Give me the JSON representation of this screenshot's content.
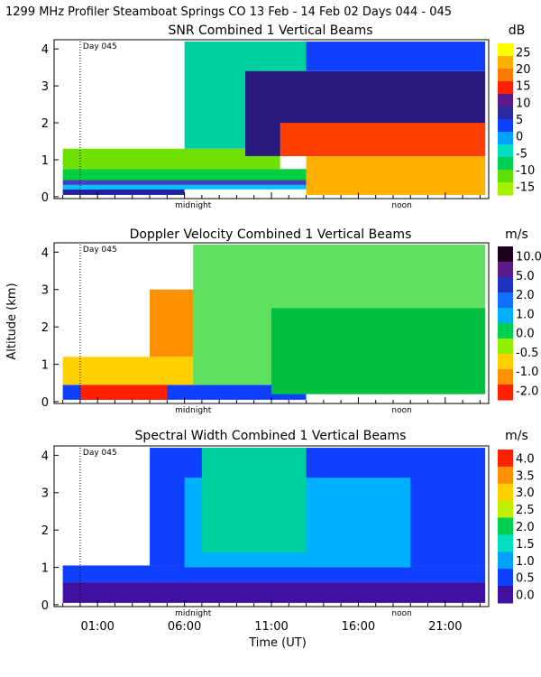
{
  "header": {
    "title": "1299 MHz Profiler  Steamboat Springs CO  13 Feb - 14 Feb 02 Days 044 - 045"
  },
  "axes": {
    "xlabel": "Time (UT)",
    "ylabel": "Altitude (km)",
    "yticks": [
      "0",
      "1",
      "2",
      "3",
      "4"
    ],
    "xticks": [
      "01:00",
      "06:00",
      "11:00",
      "16:00",
      "21:00"
    ],
    "xtick_hours": [
      1,
      6,
      11,
      16,
      21
    ],
    "xrange_hours": [
      -1.5,
      23.5
    ],
    "yrange_km": [
      -0.05,
      4.25
    ]
  },
  "markers": {
    "day_label": "Day 045",
    "day_hour": 0,
    "midnight_label": "midnight",
    "midnight_hour": 6.5,
    "noon_label": "noon",
    "noon_hour": 18.5
  },
  "chart_data": [
    {
      "type": "heatmap",
      "title": "SNR Combined 1 Vertical Beams",
      "unit": "dB",
      "colorbar_ticks": [
        "25",
        "20",
        "15",
        "10",
        "5",
        "0",
        "-5",
        "-10",
        "-15"
      ],
      "colorbar_colors": [
        "#ffff00",
        "#ffb000",
        "#ff7a00",
        "#ff2000",
        "#5a1a8a",
        "#2a2aa0",
        "#1040ff",
        "#00a0ff",
        "#00e0c0",
        "#00d050",
        "#60e000",
        "#a0f000"
      ],
      "regions": [
        {
          "t0": -1.0,
          "t1": 6.0,
          "z0": 0.05,
          "z1": 0.2,
          "color": "#2020a0"
        },
        {
          "t0": -1.0,
          "t1": 13.0,
          "z0": 0.2,
          "z1": 0.32,
          "color": "#00c0ff"
        },
        {
          "t0": -1.0,
          "t1": 13.0,
          "z0": 0.32,
          "z1": 0.45,
          "color": "#4040c0"
        },
        {
          "t0": -1.0,
          "t1": 13.0,
          "z0": 0.45,
          "z1": 0.75,
          "color": "#00d040"
        },
        {
          "t0": -1.0,
          "t1": 11.5,
          "z0": 0.75,
          "z1": 1.3,
          "color": "#70e000"
        },
        {
          "t0": 6.0,
          "t1": 13.0,
          "z0": 1.3,
          "z1": 4.2,
          "color": "#00d0a0"
        },
        {
          "t0": 9.5,
          "t1": 23.3,
          "z0": 1.1,
          "z1": 3.4,
          "color": "#2a1a80"
        },
        {
          "t0": 13.0,
          "t1": 23.3,
          "z0": 0.05,
          "z1": 1.1,
          "color": "#ffb000"
        },
        {
          "t0": 11.5,
          "t1": 23.3,
          "z0": 1.1,
          "z1": 2.0,
          "color": "#ff4000"
        },
        {
          "t0": 13.0,
          "t1": 23.3,
          "z0": 3.4,
          "z1": 4.2,
          "color": "#1040ff"
        }
      ]
    },
    {
      "type": "heatmap",
      "title": "Doppler Velocity Combined 1 Vertical Beams",
      "unit": "m/s",
      "colorbar_ticks": [
        "10.0",
        "5.0",
        "2.0",
        "1.0",
        "0.0",
        "-0.5",
        "-1.0",
        "-2.0"
      ],
      "colorbar_colors": [
        "#200020",
        "#5a1a8a",
        "#2030c0",
        "#1070ff",
        "#00b0ff",
        "#00d050",
        "#90f000",
        "#ffd000",
        "#ff9000",
        "#ff2000"
      ],
      "regions": [
        {
          "t0": -1.0,
          "t1": 13.0,
          "z0": 0.05,
          "z1": 0.45,
          "color": "#1040ff"
        },
        {
          "t0": 0.0,
          "t1": 5.0,
          "z0": 0.05,
          "z1": 0.45,
          "color": "#ff2000"
        },
        {
          "t0": -1.0,
          "t1": 8.0,
          "z0": 0.45,
          "z1": 1.2,
          "color": "#ffd000"
        },
        {
          "t0": 4.0,
          "t1": 8.5,
          "z0": 1.2,
          "z1": 3.0,
          "color": "#ff9000"
        },
        {
          "t0": 6.5,
          "t1": 23.3,
          "z0": 0.45,
          "z1": 4.2,
          "color": "#60e060"
        },
        {
          "t0": 11.0,
          "t1": 23.3,
          "z0": 0.2,
          "z1": 2.5,
          "color": "#00c040"
        }
      ]
    },
    {
      "type": "heatmap",
      "title": "Spectral Width Combined 1 Vertical Beams",
      "unit": "m/s",
      "colorbar_ticks": [
        "4.0",
        "3.5",
        "3.0",
        "2.5",
        "2.0",
        "1.5",
        "1.0",
        "0.5",
        "0.0"
      ],
      "colorbar_colors": [
        "#ff2000",
        "#ff9000",
        "#ffd000",
        "#c0f000",
        "#00d050",
        "#00e0c0",
        "#00a0ff",
        "#1040ff",
        "#4010a0"
      ],
      "regions": [
        {
          "t0": -1.0,
          "t1": 23.3,
          "z0": 0.05,
          "z1": 0.6,
          "color": "#4010a0"
        },
        {
          "t0": -1.0,
          "t1": 23.3,
          "z0": 0.6,
          "z1": 1.05,
          "color": "#1040ff"
        },
        {
          "t0": 4.0,
          "t1": 23.3,
          "z0": 1.05,
          "z1": 4.2,
          "color": "#1040ff"
        },
        {
          "t0": 6.0,
          "t1": 19.0,
          "z0": 1.0,
          "z1": 3.4,
          "color": "#00b0ff"
        },
        {
          "t0": 7.0,
          "t1": 13.0,
          "z0": 1.4,
          "z1": 4.2,
          "color": "#00d0a0"
        }
      ]
    }
  ]
}
